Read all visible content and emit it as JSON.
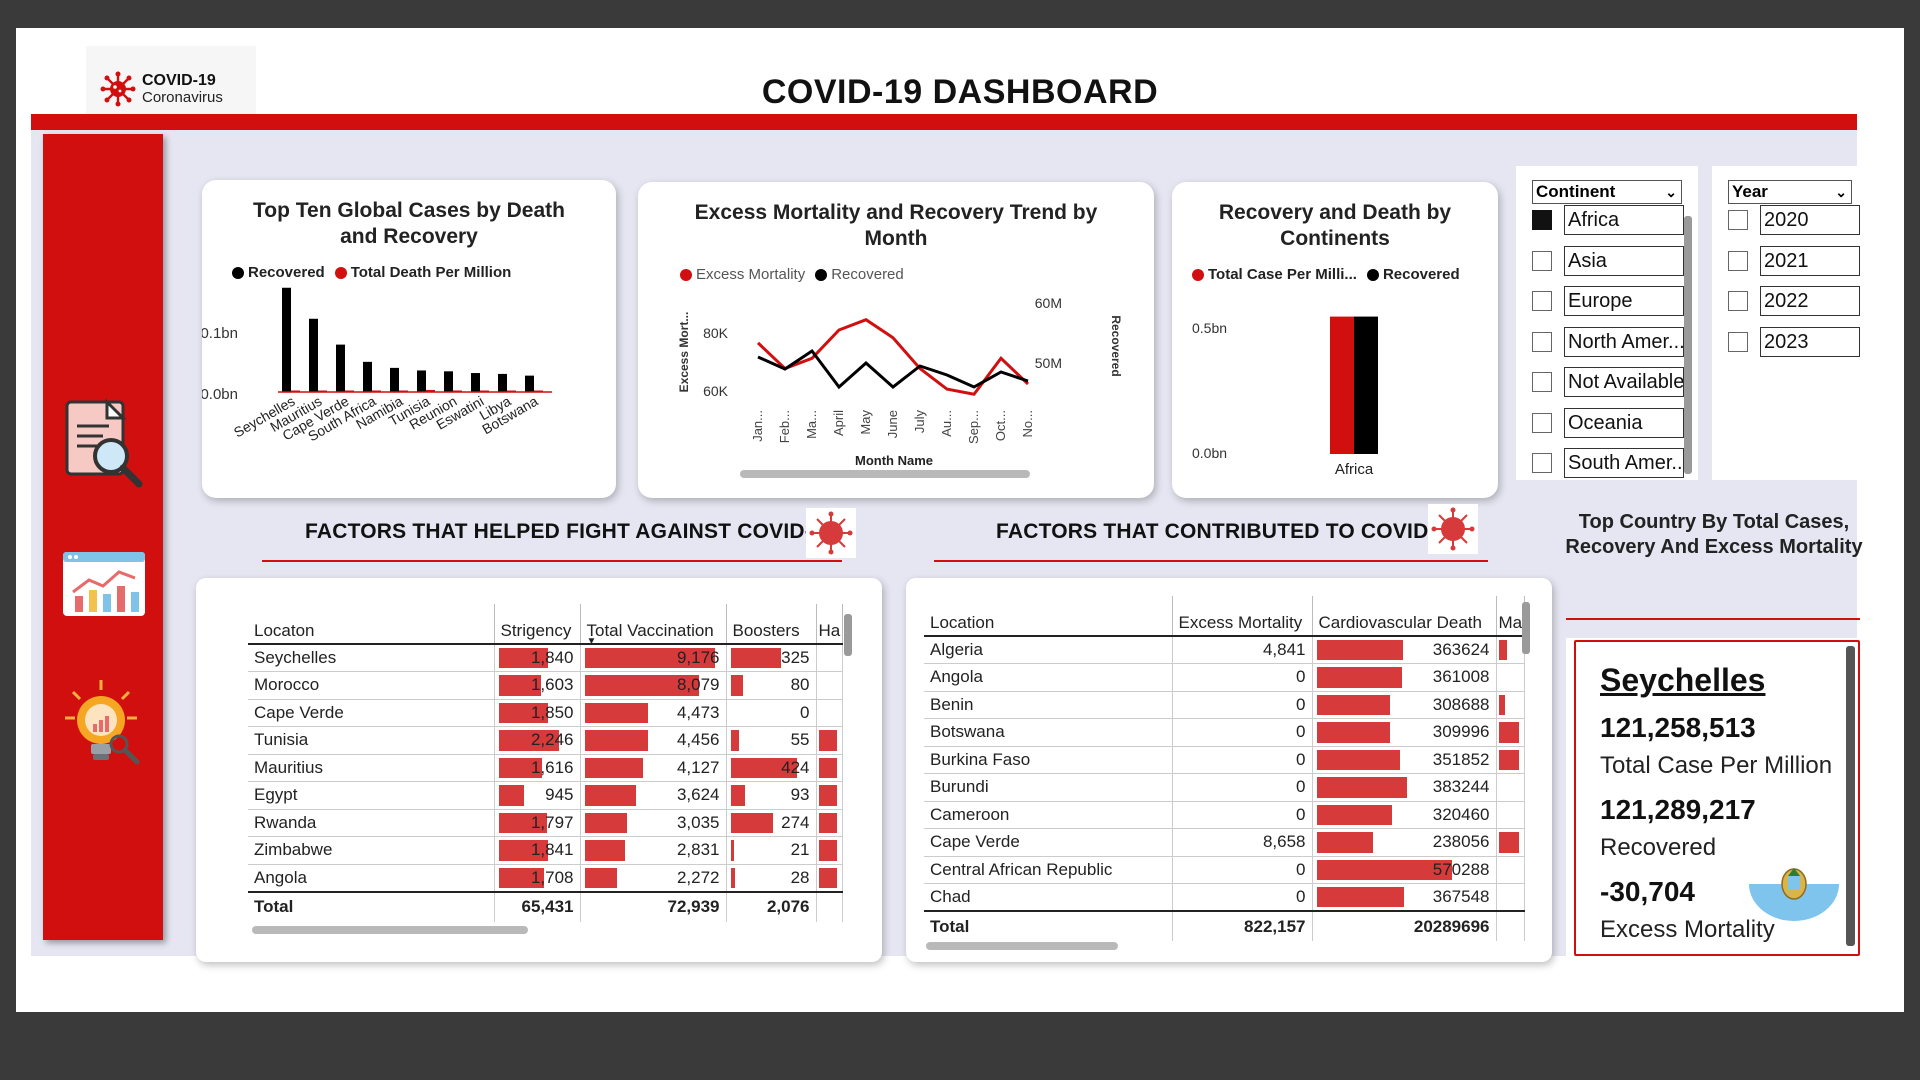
{
  "header": {
    "logo_line1": "COVID-19",
    "logo_line2": "Coronavirus",
    "title": "COVID-19 DASHBOARD"
  },
  "sidebar": {
    "icons": [
      "report-search-icon",
      "analytics-dashboard-icon",
      "idea-bulb-icon"
    ]
  },
  "colors": {
    "red": "#d10f0f",
    "bar_red": "#d63a3a",
    "black": "#000000"
  },
  "chart1": {
    "title": "Top Ten Global Cases by Death and Recovery",
    "legend": [
      "Recovered",
      "Total Death Per Million"
    ],
    "y_ticks": [
      "0.1bn",
      "0.0bn"
    ]
  },
  "chart2": {
    "title": "Excess Mortality and Recovery Trend by Month",
    "legend": [
      "Excess Mortality",
      "Recovered"
    ],
    "y_left_ticks": [
      "80K",
      "60K"
    ],
    "y_right_ticks": [
      "60M",
      "50M"
    ],
    "y_left_label": "Excess Mort...",
    "y_right_label": "Recovered",
    "x_label": "Month Name"
  },
  "chart3": {
    "title": "Recovery and Death by Continents",
    "legend": [
      "Total Case Per Milli...",
      "Recovered"
    ],
    "y_ticks": [
      "0.5bn",
      "0.0bn"
    ]
  },
  "chart_data": [
    {
      "type": "bar",
      "title": "Top Ten Global Cases by Death and Recovery",
      "categories": [
        "Seychelles",
        "Mauritius",
        "Cape Verde",
        "South Africa",
        "Namibia",
        "Tunisia",
        "Reunion",
        "Eswatini",
        "Libya",
        "Botswana"
      ],
      "series": [
        {
          "name": "Recovered",
          "values": [
            0.121,
            0.085,
            0.055,
            0.035,
            0.028,
            0.025,
            0.024,
            0.022,
            0.021,
            0.019
          ]
        },
        {
          "name": "Total Death Per Million",
          "values": [
            0.001,
            0.0006,
            0.0008,
            0.0017,
            0.0014,
            0.0024,
            0.0009,
            0.0012,
            0.0009,
            0.0011
          ]
        }
      ],
      "ylabel": "",
      "ylim": [
        0,
        0.13
      ]
    },
    {
      "type": "line",
      "title": "Excess Mortality and Recovery Trend by Month",
      "x": [
        "Jan...",
        "Feb...",
        "Ma...",
        "April",
        "May",
        "June",
        "July",
        "Au...",
        "Sep...",
        "Oct...",
        "No..."
      ],
      "series": [
        {
          "name": "Excess Mortality",
          "axis": "left",
          "values": [
            78000,
            68000,
            72000,
            83000,
            87000,
            80000,
            68000,
            60000,
            58000,
            72000,
            62000
          ]
        },
        {
          "name": "Recovered",
          "axis": "right",
          "values": [
            52500,
            50500,
            53500,
            47500,
            51500,
            47500,
            51000,
            49500,
            47500,
            50000,
            48500
          ]
        }
      ],
      "y_left_lim": [
        55000,
        90000
      ],
      "y_right_lim": [
        45000,
        60000
      ],
      "xlabel": "Month Name"
    },
    {
      "type": "bar",
      "title": "Recovery and Death by Continents",
      "categories": [
        "Africa"
      ],
      "series": [
        {
          "name": "Total Case Per Milli...",
          "values": [
            0.6
          ]
        },
        {
          "name": "Recovered",
          "values": [
            0.6
          ]
        }
      ],
      "ylim": [
        0,
        0.62
      ]
    }
  ],
  "continent_slicer": {
    "header": "Continent",
    "items": [
      {
        "label": "Africa",
        "checked": true
      },
      {
        "label": "Asia",
        "checked": false
      },
      {
        "label": "Europe",
        "checked": false
      },
      {
        "label": "North Amer...",
        "checked": false
      },
      {
        "label": "Not Available",
        "checked": false
      },
      {
        "label": "Oceania",
        "checked": false
      },
      {
        "label": "South Amer...",
        "checked": false
      }
    ]
  },
  "year_slicer": {
    "header": "Year",
    "items": [
      {
        "label": "2020",
        "checked": false
      },
      {
        "label": "2021",
        "checked": false
      },
      {
        "label": "2022",
        "checked": false
      },
      {
        "label": "2023",
        "checked": false
      }
    ]
  },
  "section_left": {
    "title": "FACTORS THAT HELPED FIGHT AGAINST COVID-19"
  },
  "section_right": {
    "title": "FACTORS THAT CONTRIBUTED TO COVID-19"
  },
  "table_left": {
    "columns": [
      "Locaton",
      "Strigency",
      "Total Vaccination",
      "Boosters",
      "Ha"
    ],
    "rows": [
      {
        "loc": "Seychelles",
        "s": "1,840",
        "sv": 1840,
        "tv": "9,176",
        "tvv": 9176,
        "b": "325",
        "bv": 325,
        "h": 0
      },
      {
        "loc": "Morocco",
        "s": "1,603",
        "sv": 1603,
        "tv": "8,079",
        "tvv": 8079,
        "b": "80",
        "bv": 80,
        "h": 0
      },
      {
        "loc": "Cape Verde",
        "s": "1,850",
        "sv": 1850,
        "tv": "4,473",
        "tvv": 4473,
        "b": "0",
        "bv": 0,
        "h": 0
      },
      {
        "loc": "Tunisia",
        "s": "2,246",
        "sv": 2246,
        "tv": "4,456",
        "tvv": 4456,
        "b": "55",
        "bv": 55,
        "h": 1
      },
      {
        "loc": "Mauritius",
        "s": "1,616",
        "sv": 1616,
        "tv": "4,127",
        "tvv": 4127,
        "b": "424",
        "bv": 424,
        "h": 1
      },
      {
        "loc": "Egypt",
        "s": "945",
        "sv": 945,
        "tv": "3,624",
        "tvv": 3624,
        "b": "93",
        "bv": 93,
        "h": 1
      },
      {
        "loc": "Rwanda",
        "s": "1,797",
        "sv": 1797,
        "tv": "3,035",
        "tvv": 3035,
        "b": "274",
        "bv": 274,
        "h": 1
      },
      {
        "loc": "Zimbabwe",
        "s": "1,841",
        "sv": 1841,
        "tv": "2,831",
        "tvv": 2831,
        "b": "21",
        "bv": 21,
        "h": 1
      },
      {
        "loc": "Angola",
        "s": "1,708",
        "sv": 1708,
        "tv": "2,272",
        "tvv": 2272,
        "b": "28",
        "bv": 28,
        "h": 1
      }
    ],
    "total": {
      "label": "Total",
      "s": "65,431",
      "tv": "72,939",
      "b": "2,076"
    }
  },
  "table_right": {
    "columns": [
      "Location",
      "Excess Mortality",
      "Cardiovascular Death",
      "Ma"
    ],
    "rows": [
      {
        "loc": "Algeria",
        "em": "4,841",
        "cd": "363624",
        "cdv": 363624,
        "m": 0.4
      },
      {
        "loc": "Angola",
        "em": "0",
        "cd": "361008",
        "cdv": 361008,
        "m": 0
      },
      {
        "loc": "Benin",
        "em": "0",
        "cd": "308688",
        "cdv": 308688,
        "m": 0.3
      },
      {
        "loc": "Botswana",
        "em": "0",
        "cd": "309996",
        "cdv": 309996,
        "m": 1
      },
      {
        "loc": "Burkina Faso",
        "em": "0",
        "cd": "351852",
        "cdv": 351852,
        "m": 1
      },
      {
        "loc": "Burundi",
        "em": "0",
        "cd": "383244",
        "cdv": 383244,
        "m": 0
      },
      {
        "loc": "Cameroon",
        "em": "0",
        "cd": "320460",
        "cdv": 320460,
        "m": 0
      },
      {
        "loc": "Cape Verde",
        "em": "8,658",
        "cd": "238056",
        "cdv": 238056,
        "m": 1
      },
      {
        "loc": "Central African Republic",
        "em": "0",
        "cd": "570288",
        "cdv": 570288,
        "m": 0
      },
      {
        "loc": "Chad",
        "em": "0",
        "cd": "367548",
        "cdv": 367548,
        "m": 0
      }
    ],
    "total": {
      "label": "Total",
      "em": "822,157",
      "cd": "20289696"
    }
  },
  "top_country": {
    "title": "Top Country By Total Cases, Recovery And Excess Mortality",
    "name": "Seychelles",
    "total_case": "121,258,513",
    "total_case_label": "Total Case Per Million",
    "recovered": "121,289,217",
    "recovered_label": "Recovered",
    "excess": "-30,704",
    "excess_label": "Excess Mortality",
    "flag_icon": "san-marino-flag-icon"
  }
}
